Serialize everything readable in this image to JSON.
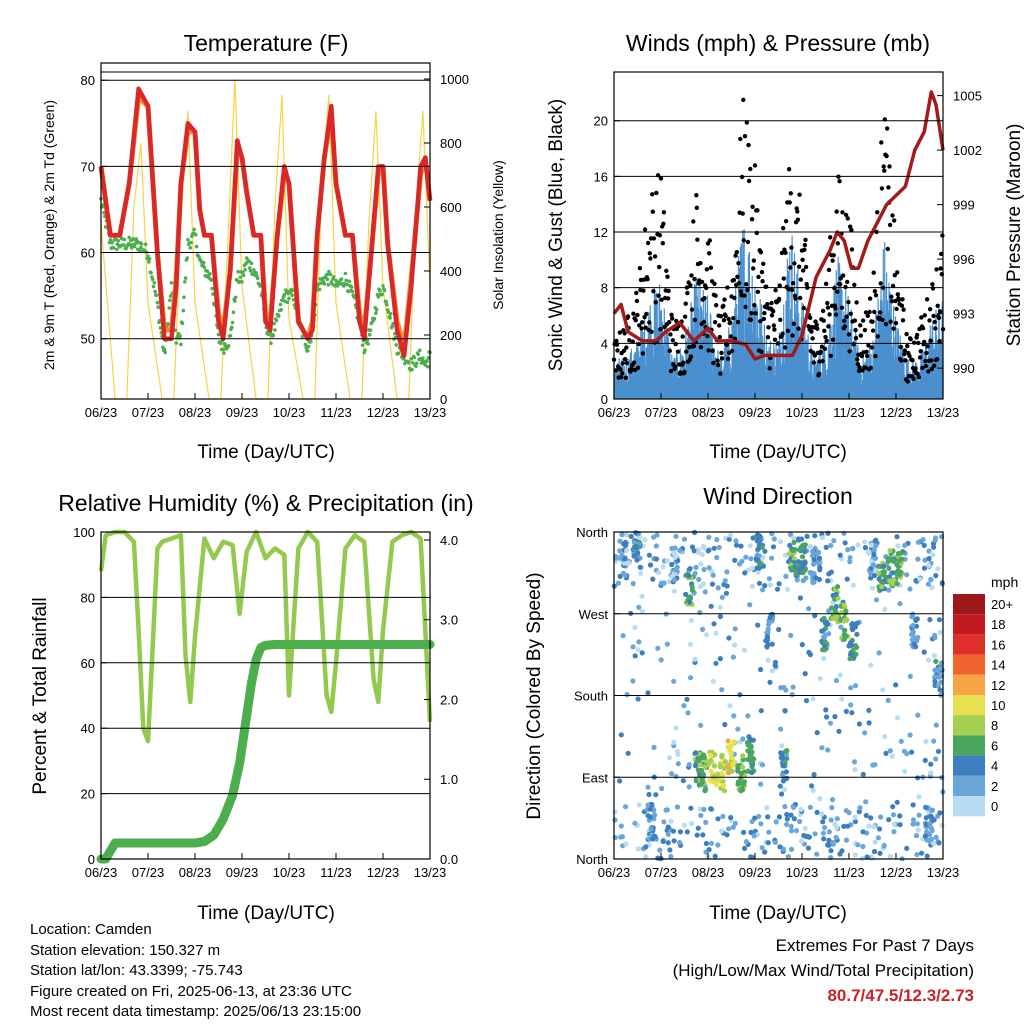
{
  "panels": {
    "temperature": {
      "title": "Temperature (F)",
      "xlabel": "Time (Day/UTC)",
      "ylabel_left": "2m & 9m T (Red, Orange) & 2m Td (Green)",
      "ylabel_right": "Solar Insolation (Yellow)"
    },
    "winds": {
      "title": "Winds (mph) & Pressure (mb)",
      "xlabel": "Time (Day/UTC)",
      "ylabel_left": "Sonic Wind & Gust (Blue, Black)",
      "ylabel_right": "Station Pressure (Maroon)"
    },
    "humidity": {
      "title": "Relative Humidity (%) & Precipitation (in)",
      "xlabel": "Time (Day/UTC)",
      "ylabel_left": "Percent & Total Rainfall"
    },
    "direction": {
      "title": "Wind Direction",
      "xlabel": "Time (Day/UTC)",
      "ylabel_left": "Direction (Colored By Speed)",
      "legend_title": "mph",
      "legend_labels": [
        "20+",
        "18",
        "16",
        "14",
        "12",
        "10",
        "8",
        "6",
        "4",
        "2",
        "0"
      ],
      "legend_colors": [
        "#9e1a1a",
        "#c0191f",
        "#df2f2a",
        "#f0642e",
        "#f8a445",
        "#e8e04e",
        "#a5cf4f",
        "#4aa55f",
        "#3d7fbe",
        "#6aa7d8",
        "#b8dcf2"
      ]
    }
  },
  "x_ticks": [
    "06/23",
    "07/23",
    "08/23",
    "09/23",
    "10/23",
    "11/23",
    "12/23",
    "13/23"
  ],
  "info": {
    "location": "Location: Camden",
    "elevation": "Station elevation: 150.327 m",
    "latlon": "Station lat/lon: 43.3399; -75.743",
    "created": "Figure created on Fri, 2025-06-13, at 23:36 UTC",
    "recent": "Most recent data timestamp: 2025/06/13 23:15:00"
  },
  "extremes": {
    "title": "Extremes For Past 7 Days",
    "subtitle": "(High/Low/Max Wind/Total Precipitation)",
    "values": "80.7/47.5/12.3/2.73"
  },
  "colors": {
    "temp_2m": "#d8282a",
    "temp_9m": "#f28a2c",
    "dewpoint": "#4cae4c",
    "solar": "#f5d547",
    "wind": "#4a90cf",
    "gust": "#000000",
    "pressure": "#a31a1a",
    "rh": "#93c94f",
    "precip": "#4cae4c"
  },
  "chart_data": [
    {
      "type": "line",
      "title": "Temperature (F)",
      "xlabel": "Time (Day/UTC)",
      "ylabel": "2m & 9m T (Red, Orange) & 2m Td (Green)",
      "y2label": "Solar Insolation (Yellow)",
      "ylim": [
        43,
        82
      ],
      "y2lim": [
        0,
        1050
      ],
      "yticks": [
        50,
        60,
        70,
        80
      ],
      "y2ticks": [
        0,
        200,
        400,
        600,
        800,
        1000
      ],
      "x": [
        6.0,
        6.2,
        6.4,
        6.6,
        6.8,
        7.0,
        7.2,
        7.35,
        7.5,
        7.6,
        7.7,
        7.85,
        8.0,
        8.1,
        8.2,
        8.35,
        8.5,
        8.6,
        8.75,
        8.9,
        9.0,
        9.1,
        9.25,
        9.4,
        9.5,
        9.6,
        9.75,
        9.9,
        10.0,
        10.1,
        10.2,
        10.4,
        10.5,
        10.6,
        10.75,
        10.9,
        11.0,
        11.2,
        11.35,
        11.5,
        11.6,
        11.75,
        11.9,
        12.0,
        12.1,
        12.3,
        12.45,
        12.6,
        12.8,
        12.9,
        13.0
      ],
      "series": [
        {
          "name": "2m T",
          "values": [
            70,
            62,
            62,
            68,
            79,
            77,
            60,
            50,
            50,
            56,
            68,
            75,
            74,
            65,
            62,
            62,
            52,
            50,
            58,
            73,
            71,
            67,
            62,
            62,
            52,
            51,
            62,
            70,
            68,
            60,
            52,
            50,
            51,
            62,
            71,
            77,
            68,
            62,
            62,
            52,
            50,
            60,
            70,
            70,
            61,
            51,
            48,
            56,
            70,
            71,
            66
          ]
        },
        {
          "name": "9m T",
          "values": [
            70,
            62,
            62,
            68,
            78,
            77,
            60,
            51,
            51,
            57,
            68,
            74,
            74,
            65,
            62,
            62,
            53,
            51,
            58,
            72,
            71,
            67,
            62,
            62,
            53,
            52,
            62,
            69,
            68,
            60,
            52,
            50,
            52,
            62,
            71,
            76,
            68,
            62,
            62,
            53,
            51,
            60,
            69,
            70,
            61,
            52,
            49,
            57,
            69,
            71,
            66
          ]
        },
        {
          "name": "2m Td",
          "values": [
            66,
            61,
            61,
            61,
            61,
            60,
            54,
            48,
            56,
            50,
            50,
            61,
            62,
            59,
            58,
            57,
            50,
            49,
            50,
            57,
            57,
            59,
            58,
            56,
            52,
            50,
            52,
            55,
            55,
            55,
            52,
            49,
            51,
            56,
            57,
            57,
            56,
            57,
            55,
            52,
            49,
            51,
            55,
            56,
            54,
            49,
            48,
            47,
            48,
            47,
            48
          ]
        }
      ],
      "solar_series": {
        "name": "Solar Insolation",
        "x": [
          6.0,
          6.3,
          6.55,
          6.7,
          6.85,
          7.0,
          7.3,
          7.55,
          7.7,
          7.85,
          8.0,
          8.3,
          8.55,
          8.7,
          8.85,
          9.0,
          9.3,
          9.55,
          9.7,
          9.85,
          10.0,
          10.3,
          10.55,
          10.7,
          10.85,
          11.0,
          11.3,
          11.55,
          11.7,
          11.85,
          12.0,
          12.3,
          12.55,
          12.7,
          12.85,
          13.0
        ],
        "values": [
          550,
          0,
          0,
          600,
          800,
          300,
          0,
          0,
          550,
          900,
          300,
          0,
          0,
          500,
          1000,
          350,
          0,
          0,
          600,
          950,
          250,
          0,
          0,
          700,
          950,
          300,
          0,
          0,
          550,
          900,
          350,
          0,
          0,
          600,
          900,
          350
        ]
      }
    },
    {
      "type": "scatter",
      "title": "Winds (mph) & Pressure (mb)",
      "xlabel": "Time (Day/UTC)",
      "ylabel": "Sonic Wind & Gust (Blue, Black)",
      "y2label": "Station Pressure (Maroon)",
      "ylim": [
        0,
        23.5
      ],
      "y2lim": [
        988.3,
        1006.3
      ],
      "yticks": [
        0,
        4,
        8,
        12,
        16,
        20
      ],
      "y2ticks": [
        990,
        993,
        996,
        999,
        1002,
        1005
      ],
      "x": [
        6.0,
        6.25,
        6.5,
        6.75,
        7.0,
        7.25,
        7.5,
        7.75,
        8.0,
        8.25,
        8.5,
        8.75,
        9.0,
        9.25,
        9.5,
        9.75,
        10.0,
        10.25,
        10.5,
        10.75,
        11.0,
        11.25,
        11.5,
        11.75,
        12.0,
        12.25,
        12.5,
        12.75,
        13.0
      ],
      "series": [
        {
          "name": "Sonic Wind",
          "values": [
            2,
            2,
            3,
            5,
            6,
            2,
            3,
            6,
            5,
            2,
            4,
            9,
            7,
            3,
            3,
            9,
            5,
            2,
            3,
            7,
            5,
            2,
            3,
            8,
            4,
            2,
            2,
            4,
            5
          ]
        },
        {
          "name": "Gust",
          "values": [
            3,
            4,
            6,
            11,
            12,
            4,
            5,
            11,
            9,
            4,
            7,
            16,
            12,
            6,
            6,
            13,
            10,
            4,
            6,
            12,
            10,
            4,
            6,
            16,
            8,
            3,
            4,
            6,
            9
          ]
        },
        {
          "name": "Station Pressure",
          "x": [
            6.0,
            6.15,
            6.3,
            6.6,
            6.9,
            7.1,
            7.4,
            7.7,
            8.0,
            8.2,
            8.5,
            8.8,
            9.0,
            9.2,
            9.5,
            9.8,
            10.0,
            10.3,
            10.6,
            10.75,
            10.9,
            11.05,
            11.2,
            11.4,
            11.6,
            11.8,
            12.0,
            12.2,
            12.4,
            12.6,
            12.75,
            12.85,
            13.0
          ],
          "values": [
            993,
            993.5,
            992,
            991.5,
            991.5,
            992,
            992.5,
            991.5,
            992.2,
            991.5,
            991.5,
            991.3,
            990.5,
            990.7,
            990.7,
            990.7,
            991.8,
            995,
            996.5,
            997.5,
            997,
            995.5,
            995.5,
            997,
            998,
            999,
            999.5,
            1000,
            1002,
            1003,
            1005.2,
            1004.5,
            1002
          ]
        }
      ]
    },
    {
      "type": "line",
      "title": "Relative Humidity (%) & Precipitation (in)",
      "xlabel": "Time (Day/UTC)",
      "ylabel": "Percent & Total Rainfall",
      "ylim": [
        0,
        100
      ],
      "y2lim": [
        0,
        4.1
      ],
      "yticks": [
        0,
        20,
        40,
        60,
        80,
        100
      ],
      "y2ticks": [
        0.0,
        1.0,
        2.0,
        3.0,
        4.0
      ],
      "x": [
        6.0,
        6.1,
        6.3,
        6.5,
        6.7,
        6.8,
        6.9,
        7.0,
        7.1,
        7.2,
        7.3,
        7.5,
        7.7,
        7.8,
        7.9,
        8.0,
        8.2,
        8.4,
        8.6,
        8.8,
        8.95,
        9.1,
        9.2,
        9.3,
        9.4,
        9.5,
        9.7,
        9.9,
        10.0,
        10.2,
        10.4,
        10.6,
        10.8,
        10.9,
        11.0,
        11.2,
        11.4,
        11.6,
        11.8,
        11.9,
        12.0,
        12.2,
        12.4,
        12.6,
        12.8,
        13.0
      ],
      "series": [
        {
          "name": "Relative Humidity",
          "values": [
            88,
            99,
            100,
            100,
            97,
            70,
            40,
            36,
            65,
            95,
            97,
            98,
            99,
            62,
            48,
            68,
            98,
            92,
            97,
            96,
            75,
            94,
            97,
            100,
            96,
            92,
            95,
            93,
            50,
            95,
            100,
            97,
            50,
            45,
            60,
            95,
            99,
            97,
            55,
            48,
            70,
            97,
            99,
            100,
            98,
            42
          ]
        },
        {
          "name": "Total Precipitation",
          "values": [
            0,
            0,
            0.2,
            0.2,
            0.2,
            0.2,
            0.2,
            0.2,
            0.2,
            0.2,
            0.2,
            0.2,
            0.2,
            0.2,
            0.2,
            0.2,
            0.22,
            0.3,
            0.5,
            0.8,
            1.2,
            1.8,
            2.2,
            2.5,
            2.65,
            2.68,
            2.69,
            2.69,
            2.69,
            2.69,
            2.69,
            2.69,
            2.69,
            2.69,
            2.69,
            2.69,
            2.69,
            2.69,
            2.69,
            2.69,
            2.69,
            2.69,
            2.69,
            2.69,
            2.69,
            2.69
          ]
        }
      ]
    },
    {
      "type": "scatter",
      "title": "Wind Direction",
      "xlabel": "Time (Day/UTC)",
      "ylabel": "Direction (Colored By Speed)",
      "yticks": [
        "North",
        "East",
        "South",
        "West",
        "North"
      ],
      "ylim": [
        0,
        360
      ],
      "x": [
        6.2,
        6.5,
        6.8,
        7.3,
        7.6,
        7.8,
        7.9,
        8.1,
        8.3,
        8.5,
        8.7,
        8.9,
        9.1,
        9.3,
        9.6,
        9.8,
        10.0,
        10.3,
        10.5,
        10.7,
        10.9,
        11.1,
        11.5,
        11.7,
        11.9,
        12.1,
        12.4,
        12.7,
        12.9
      ],
      "series": [
        {
          "name": "Direction",
          "values": [
            330,
            340,
            40,
            325,
            300,
            100,
            95,
            100,
            95,
            110,
            95,
            115,
            340,
            250,
            100,
            330,
            335,
            320,
            250,
            280,
            260,
            240,
            330,
            310,
            320,
            320,
            250,
            40,
            200
          ]
        },
        {
          "name": "Speed",
          "values": [
            2,
            4,
            3,
            2,
            6,
            6,
            7,
            9,
            9,
            10,
            7,
            5,
            4,
            3,
            4,
            6,
            5,
            3,
            4,
            6,
            7,
            5,
            2,
            6,
            6,
            7,
            3,
            3,
            4
          ]
        }
      ]
    }
  ]
}
